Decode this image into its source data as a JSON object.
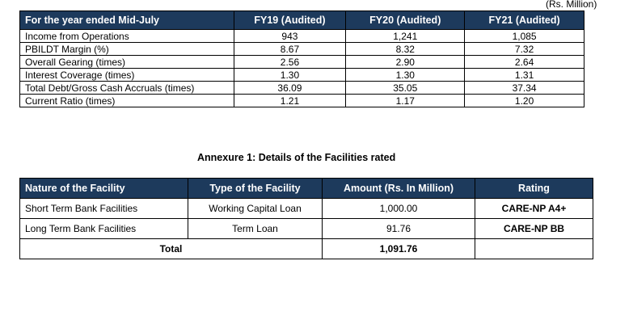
{
  "units_note": "(Rs. Million)",
  "financials": {
    "headers": [
      "For the year ended Mid-July",
      "FY19 (Audited)",
      "FY20 (Audited)",
      "FY21 (Audited)"
    ],
    "rows": [
      {
        "label": "Income from Operations",
        "fy19": "943",
        "fy20": "1,241",
        "fy21": "1,085"
      },
      {
        "label": "PBILDT Margin (%)",
        "fy19": "8.67",
        "fy20": "8.32",
        "fy21": "7.32"
      },
      {
        "label": "Overall Gearing (times)",
        "fy19": "2.56",
        "fy20": "2.90",
        "fy21": "2.64"
      },
      {
        "label": "Interest Coverage (times)",
        "fy19": "1.30",
        "fy20": "1.30",
        "fy21": "1.31"
      },
      {
        "label": "Total Debt/Gross Cash Accruals (times)",
        "fy19": "36.09",
        "fy20": "35.05",
        "fy21": "37.34"
      },
      {
        "label": "Current Ratio (times)",
        "fy19": "1.21",
        "fy20": "1.17",
        "fy21": "1.20"
      }
    ]
  },
  "annexure_title": "Annexure 1: Details of the Facilities rated",
  "facilities": {
    "headers": [
      "Nature of the Facility",
      "Type of the Facility",
      "Amount (Rs. In Million)",
      "Rating"
    ],
    "rows": [
      {
        "nature": "Short Term Bank Facilities",
        "type": "Working Capital Loan",
        "amount": "1,000.00",
        "rating": "CARE-NP A4+"
      },
      {
        "nature": "Long Term Bank Facilities",
        "type": "Term Loan",
        "amount": "91.76",
        "rating": "CARE-NP BB"
      }
    ],
    "total_label": "Total",
    "total_amount": "1,091.76"
  }
}
